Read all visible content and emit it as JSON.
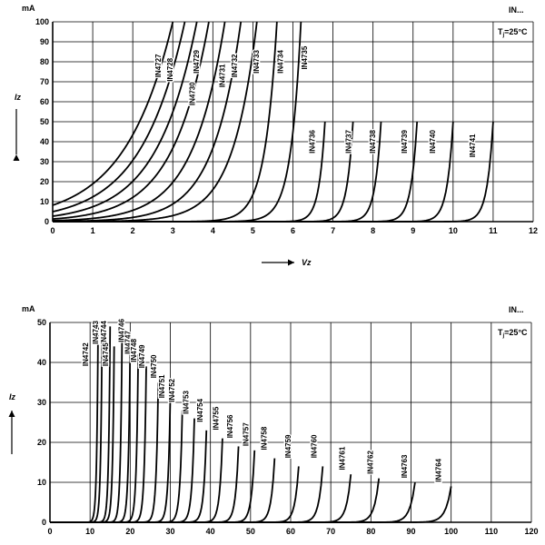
{
  "chart_data": [
    {
      "type": "line",
      "unit_label": "mA",
      "corner_label": "IN...",
      "condition_label_prefix": "T",
      "condition_label_sub": "j",
      "condition_label_rest": "=25°C",
      "x_ticks": [
        "0",
        "1",
        "2",
        "3",
        "4",
        "5",
        "6",
        "7",
        "8",
        "9",
        "10",
        "11",
        "12"
      ],
      "y_ticks": [
        "0",
        "10",
        "20",
        "30",
        "40",
        "50",
        "60",
        "70",
        "80",
        "90",
        "100"
      ],
      "xlim": [
        0,
        12
      ],
      "ylim": [
        0,
        100
      ],
      "xlabel": "Vz",
      "ylabel": "Iz",
      "series": [
        {
          "name": "IN4727",
          "vz": 3.0,
          "knee": 1.2,
          "imax": 100,
          "label_at": [
            2.7,
            78
          ]
        },
        {
          "name": "IN4728",
          "vz": 3.3,
          "knee": 1.1,
          "imax": 100,
          "label_at": [
            3.0,
            76
          ]
        },
        {
          "name": "IN4729",
          "vz": 3.6,
          "knee": 1.0,
          "imax": 100,
          "label_at": [
            3.65,
            80
          ]
        },
        {
          "name": "IN4730",
          "vz": 3.9,
          "knee": 0.9,
          "imax": 100,
          "label_at": [
            3.55,
            64
          ]
        },
        {
          "name": "IN4731",
          "vz": 4.3,
          "knee": 0.8,
          "imax": 100,
          "label_at": [
            4.3,
            73
          ]
        },
        {
          "name": "IN4732",
          "vz": 4.7,
          "knee": 0.7,
          "imax": 100,
          "label_at": [
            4.6,
            78
          ]
        },
        {
          "name": "IN4733",
          "vz": 5.1,
          "knee": 0.6,
          "imax": 100,
          "label_at": [
            5.15,
            80
          ]
        },
        {
          "name": "IN4734",
          "vz": 5.6,
          "knee": 0.3,
          "imax": 100,
          "label_at": [
            5.75,
            80
          ]
        },
        {
          "name": "IN4735",
          "vz": 6.2,
          "knee": 0.25,
          "imax": 100,
          "label_at": [
            6.35,
            82
          ]
        },
        {
          "name": "IN4736",
          "vz": 6.8,
          "knee": 0.15,
          "imax": 50,
          "label_at": [
            6.55,
            40
          ]
        },
        {
          "name": "IN4737",
          "vz": 7.5,
          "knee": 0.15,
          "imax": 50,
          "label_at": [
            7.45,
            40
          ]
        },
        {
          "name": "IN4738",
          "vz": 8.2,
          "knee": 0.15,
          "imax": 50,
          "label_at": [
            8.05,
            40
          ]
        },
        {
          "name": "IN4739",
          "vz": 9.1,
          "knee": 0.15,
          "imax": 50,
          "label_at": [
            8.85,
            40
          ]
        },
        {
          "name": "IN4740",
          "vz": 10.0,
          "knee": 0.15,
          "imax": 50,
          "label_at": [
            9.55,
            40
          ]
        },
        {
          "name": "IN4741",
          "vz": 11.0,
          "knee": 0.15,
          "imax": 50,
          "label_at": [
            10.55,
            38
          ]
        }
      ]
    },
    {
      "type": "line",
      "unit_label": "mA",
      "corner_label": "IN...",
      "condition_label_prefix": "T",
      "condition_label_sub": "j",
      "condition_label_rest": "=25°C",
      "x_ticks": [
        "0",
        "10",
        "20",
        "30",
        "40",
        "50",
        "60",
        "70",
        "80",
        "90",
        "100",
        "110",
        "120"
      ],
      "y_ticks": [
        "0",
        "10",
        "20",
        "30",
        "40",
        "50"
      ],
      "xlim": [
        0,
        120
      ],
      "ylim": [
        0,
        50
      ],
      "xlabel": "Vz",
      "ylabel": "Iz",
      "series": [
        {
          "name": "IN4742",
          "vz": 12,
          "imax": 49,
          "label_at": [
            9.5,
            42
          ]
        },
        {
          "name": "IN4743",
          "vz": 13,
          "imax": 49,
          "label_at": [
            12.0,
            47.5
          ]
        },
        {
          "name": "IN4744",
          "vz": 15,
          "imax": 49,
          "label_at": [
            14.0,
            47.5
          ]
        },
        {
          "name": "IN4745",
          "vz": 16,
          "imax": 44,
          "label_at": [
            14.5,
            42
          ]
        },
        {
          "name": "IN4746",
          "vz": 18,
          "imax": 49,
          "label_at": [
            18.5,
            48
          ]
        },
        {
          "name": "IN4747",
          "vz": 20,
          "imax": 45,
          "label_at": [
            20.0,
            45
          ]
        },
        {
          "name": "IN4748",
          "vz": 22,
          "imax": 42,
          "label_at": [
            21.5,
            43
          ]
        },
        {
          "name": "IN4749",
          "vz": 24,
          "imax": 39,
          "label_at": [
            23.5,
            41.5
          ]
        },
        {
          "name": "IN4750",
          "vz": 27,
          "imax": 35,
          "label_at": [
            26.5,
            39
          ]
        },
        {
          "name": "IN4751",
          "vz": 30,
          "imax": 31,
          "label_at": [
            28.5,
            34
          ]
        },
        {
          "name": "IN4752",
          "vz": 33,
          "imax": 28,
          "label_at": [
            31.0,
            33
          ]
        },
        {
          "name": "IN4753",
          "vz": 36,
          "imax": 26,
          "label_at": [
            34.5,
            30
          ]
        },
        {
          "name": "IN4754",
          "vz": 39,
          "imax": 23,
          "label_at": [
            38.0,
            28
          ]
        },
        {
          "name": "IN4755",
          "vz": 43,
          "imax": 21,
          "label_at": [
            42.0,
            26
          ]
        },
        {
          "name": "IN4756",
          "vz": 47,
          "imax": 19,
          "label_at": [
            45.5,
            24
          ]
        },
        {
          "name": "IN4757",
          "vz": 51,
          "imax": 18,
          "label_at": [
            49.5,
            22
          ]
        },
        {
          "name": "IN4758",
          "vz": 56,
          "imax": 16,
          "label_at": [
            54.0,
            21
          ]
        },
        {
          "name": "IN4759",
          "vz": 62,
          "imax": 14,
          "label_at": [
            60.0,
            19
          ]
        },
        {
          "name": "IN4760",
          "vz": 68,
          "imax": 14,
          "label_at": [
            66.5,
            19
          ]
        },
        {
          "name": "IN4761",
          "vz": 75,
          "imax": 12,
          "label_at": [
            73.5,
            16
          ]
        },
        {
          "name": "IN4762",
          "vz": 82,
          "imax": 11,
          "label_at": [
            80.5,
            15
          ]
        },
        {
          "name": "IN4763",
          "vz": 91,
          "imax": 10,
          "label_at": [
            89.0,
            14
          ]
        },
        {
          "name": "IN4764",
          "vz": 100,
          "imax": 9,
          "label_at": [
            97.5,
            13
          ]
        }
      ]
    }
  ]
}
